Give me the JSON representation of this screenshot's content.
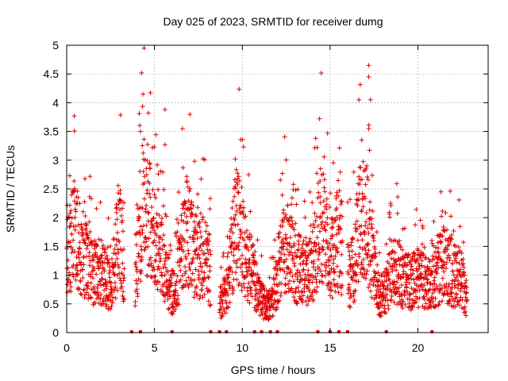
{
  "chart_data": {
    "type": "scatter",
    "title": "Day 025 of 2023, SRMTID for receiver dumg",
    "xlabel": "GPS time / hours",
    "ylabel": "SRMTID / TECUs",
    "xlim": [
      0,
      24
    ],
    "ylim": [
      0,
      5
    ],
    "xticks": [
      0,
      5,
      10,
      15,
      20
    ],
    "yticks": [
      0,
      0.5,
      1,
      1.5,
      2,
      2.5,
      3,
      3.5,
      4,
      4.5,
      5
    ],
    "ytick_labels": [
      "0",
      "0.5",
      "1",
      "1.5",
      "2",
      "2.5",
      "3",
      "3.5",
      "4",
      "4.5",
      "5"
    ],
    "xtick_labels": [
      "0",
      "5",
      "10",
      "15",
      "20"
    ],
    "grid": true,
    "marker": "+",
    "color": "#e00000",
    "x_extent_hours": [
      0,
      22.8
    ],
    "noted_peaks": [
      {
        "x": 4.2,
        "y": 3.5
      },
      {
        "x": 5.6,
        "y": 3.88
      },
      {
        "x": 5.6,
        "y": 3.27
      },
      {
        "x": 9.6,
        "y": 3.02
      },
      {
        "x": 14.4,
        "y": 3.72
      },
      {
        "x": 17.2,
        "y": 4.65
      },
      {
        "x": 17.2,
        "y": 4.45
      },
      {
        "x": 17.3,
        "y": 4.05
      },
      {
        "x": 17.2,
        "y": 3.55
      },
      {
        "x": 16.8,
        "y": 3.35
      }
    ],
    "activity_bursts": [
      {
        "center": 0.3,
        "width": 0.5,
        "amp": 1.3
      },
      {
        "center": 1.0,
        "width": 0.6,
        "amp": 0.9
      },
      {
        "center": 2.0,
        "width": 0.6,
        "amp": 0.7
      },
      {
        "center": 3.0,
        "width": 0.3,
        "amp": 1.6
      },
      {
        "center": 4.4,
        "width": 0.5,
        "amp": 2.0
      },
      {
        "center": 5.2,
        "width": 0.6,
        "amp": 1.2
      },
      {
        "center": 6.8,
        "width": 0.5,
        "amp": 1.6
      },
      {
        "center": 7.8,
        "width": 0.6,
        "amp": 1.1
      },
      {
        "center": 9.7,
        "width": 0.5,
        "amp": 1.7
      },
      {
        "center": 10.5,
        "width": 0.5,
        "amp": 0.7
      },
      {
        "center": 12.5,
        "width": 0.6,
        "amp": 1.3
      },
      {
        "center": 13.5,
        "width": 0.5,
        "amp": 0.7
      },
      {
        "center": 14.5,
        "width": 0.5,
        "amp": 1.8
      },
      {
        "center": 15.5,
        "width": 0.5,
        "amp": 1.4
      },
      {
        "center": 16.9,
        "width": 0.6,
        "amp": 2.0
      },
      {
        "center": 18.7,
        "width": 0.6,
        "amp": 0.8
      },
      {
        "center": 20.0,
        "width": 0.8,
        "amp": 0.6
      },
      {
        "center": 21.5,
        "width": 0.7,
        "amp": 0.9
      },
      {
        "center": 22.4,
        "width": 0.4,
        "amp": 0.5
      }
    ],
    "zero_markers_x": [
      3.7,
      4.2,
      6.0,
      8.2,
      8.7,
      9.1,
      10.7,
      11.1,
      11.6,
      12.0,
      14.3,
      15.0,
      15.5,
      16.0,
      18.2,
      20.8
    ]
  }
}
